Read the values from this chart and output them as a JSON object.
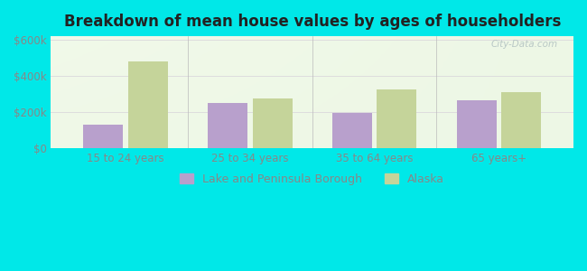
{
  "title": "Breakdown of mean house values by ages of householders",
  "categories": [
    "15 to 24 years",
    "25 to 34 years",
    "35 to 64 years",
    "65 years+"
  ],
  "series": [
    {
      "name": "Lake and Peninsula Borough",
      "values": [
        130000,
        250000,
        195000,
        265000
      ],
      "color": "#b8a0cc"
    },
    {
      "name": "Alaska",
      "values": [
        480000,
        275000,
        325000,
        310000
      ],
      "color": "#c5d49a"
    }
  ],
  "ylim": [
    0,
    620000
  ],
  "yticks": [
    0,
    200000,
    400000,
    600000
  ],
  "ytick_labels": [
    "$0",
    "$200k",
    "$400k",
    "$600k"
  ],
  "bar_width": 0.32,
  "figure_bg": "#00e8e8",
  "plot_bg": "#f0f8e8",
  "grid_color": "#dddddd",
  "watermark": "City-Data.com",
  "title_fontsize": 12,
  "tick_fontsize": 8.5,
  "legend_fontsize": 9,
  "title_color": "#222222",
  "tick_color": "#888888"
}
